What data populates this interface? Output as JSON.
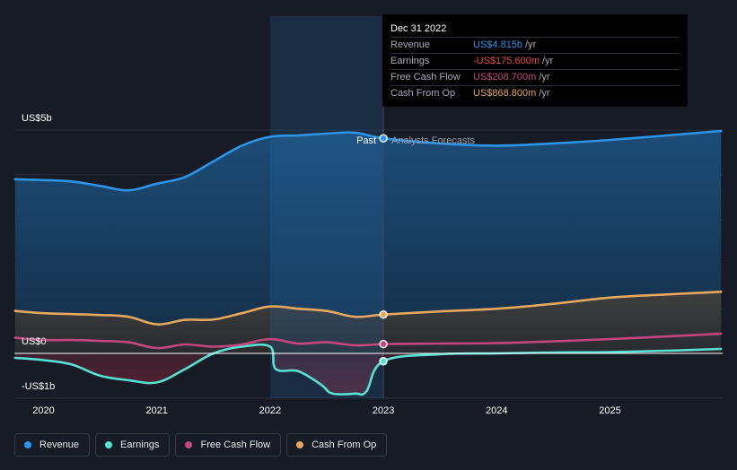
{
  "chart_data": {
    "type": "area",
    "title": "",
    "y_axis": {
      "labels": [
        "US$5b",
        "US$0",
        "-US$1b"
      ],
      "ylim": [
        -1.0,
        5.0
      ],
      "unit": "US$ billions"
    },
    "x_axis": {
      "labels": [
        "2020",
        "2021",
        "2022",
        "2023",
        "2024",
        "2025"
      ],
      "xlim": [
        2019.75,
        2025.98
      ]
    },
    "regions": {
      "past_label": "Past",
      "forecast_label": "Analysts Forecasts",
      "divider_x": 2023.0,
      "highlight_start_x": 2022.0
    },
    "series": [
      {
        "name": "Revenue",
        "color": "#2d94e6",
        "x": [
          2019.75,
          2020.0,
          2020.25,
          2020.5,
          2020.75,
          2021.0,
          2021.25,
          2021.5,
          2021.75,
          2022.0,
          2022.25,
          2022.5,
          2022.75,
          2023.0,
          2023.5,
          2024.0,
          2024.5,
          2025.0,
          2025.5,
          2025.98
        ],
        "values": [
          3.9,
          3.88,
          3.85,
          3.75,
          3.65,
          3.8,
          3.95,
          4.3,
          4.65,
          4.85,
          4.88,
          4.92,
          4.94,
          4.815,
          4.7,
          4.65,
          4.7,
          4.78,
          4.88,
          4.98
        ]
      },
      {
        "name": "Earnings",
        "color": "#58e0d1",
        "x": [
          2019.75,
          2020.0,
          2020.25,
          2020.5,
          2020.75,
          2021.0,
          2021.25,
          2021.5,
          2021.75,
          2022.0,
          2022.05,
          2022.25,
          2022.45,
          2022.55,
          2022.75,
          2022.85,
          2023.0,
          2023.5,
          2024.0,
          2024.5,
          2025.0,
          2025.5,
          2025.98
        ],
        "values": [
          -0.1,
          -0.15,
          -0.25,
          -0.5,
          -0.6,
          -0.65,
          -0.35,
          0.0,
          0.15,
          0.15,
          -0.35,
          -0.4,
          -0.7,
          -0.9,
          -0.9,
          -0.85,
          -0.1756,
          -0.02,
          0.0,
          0.02,
          0.03,
          0.06,
          0.1
        ]
      },
      {
        "name": "Free Cash Flow",
        "color": "#c2477c",
        "x": [
          2019.75,
          2020.0,
          2020.25,
          2020.5,
          2020.75,
          2021.0,
          2021.25,
          2021.5,
          2021.75,
          2022.0,
          2022.25,
          2022.5,
          2022.75,
          2023.0,
          2023.5,
          2024.0,
          2024.5,
          2025.0,
          2025.5,
          2025.98
        ],
        "values": [
          0.35,
          0.3,
          0.3,
          0.28,
          0.25,
          0.12,
          0.2,
          0.15,
          0.2,
          0.32,
          0.22,
          0.25,
          0.18,
          0.2087,
          0.22,
          0.23,
          0.27,
          0.32,
          0.38,
          0.44
        ]
      },
      {
        "name": "Cash From Op",
        "color": "#e6a85c",
        "x": [
          2019.75,
          2020.0,
          2020.25,
          2020.5,
          2020.75,
          2021.0,
          2021.25,
          2021.5,
          2021.75,
          2022.0,
          2022.25,
          2022.5,
          2022.75,
          2023.0,
          2023.5,
          2024.0,
          2024.5,
          2025.0,
          2025.5,
          2025.98
        ],
        "values": [
          0.95,
          0.9,
          0.88,
          0.86,
          0.82,
          0.65,
          0.75,
          0.76,
          0.9,
          1.05,
          1.0,
          0.95,
          0.82,
          0.8688,
          0.94,
          1.0,
          1.11,
          1.25,
          1.32,
          1.38
        ]
      }
    ],
    "tooltip": {
      "date": "Dec 31 2022",
      "unit": "/yr",
      "rows": [
        {
          "label": "Revenue",
          "value": "US$4.815b",
          "color": "#2d94e6"
        },
        {
          "label": "Earnings",
          "value": "-US$175.600m",
          "color": "#e64b46"
        },
        {
          "label": "Free Cash Flow",
          "value": "US$208.700m",
          "color": "#c2477c"
        },
        {
          "label": "Cash From Op",
          "value": "US$868.800m",
          "color": "#e6a85c"
        }
      ]
    }
  },
  "legend": [
    {
      "label": "Revenue",
      "color": "#2d94e6"
    },
    {
      "label": "Earnings",
      "color": "#58e0d1"
    },
    {
      "label": "Free Cash Flow",
      "color": "#c2477c"
    },
    {
      "label": "Cash From Op",
      "color": "#e6a85c"
    }
  ]
}
